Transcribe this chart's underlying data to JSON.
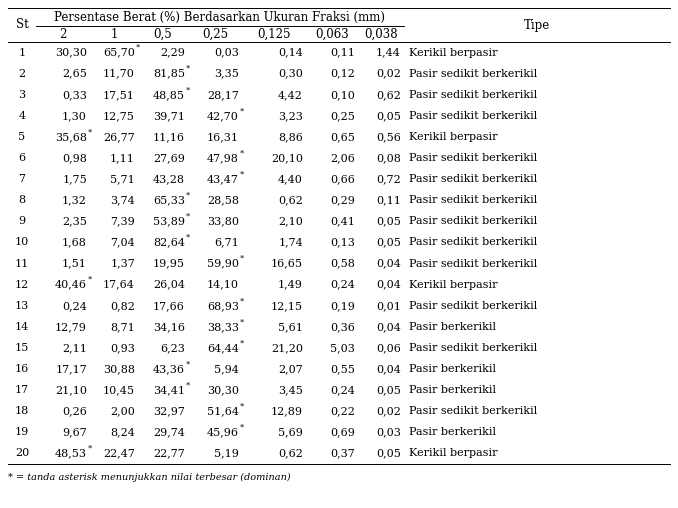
{
  "header_main": "Persentase Berat (%) Berdasarkan Ukuran Fraksi (mm)",
  "sub_headers": [
    "2",
    "1",
    "0,5",
    "0,25",
    "0,125",
    "0,063",
    "0,038"
  ],
  "rows": [
    [
      "1",
      "30,30",
      "65,70",
      "2,29",
      "0,03",
      "0,14",
      "0,11",
      "1,44",
      "Kerikil berpasir"
    ],
    [
      "2",
      "2,65",
      "11,70",
      "81,85",
      "3,35",
      "0,30",
      "0,12",
      "0,02",
      "Pasir sedikit berkerikil"
    ],
    [
      "3",
      "0,33",
      "17,51",
      "48,85",
      "28,17",
      "4,42",
      "0,10",
      "0,62",
      "Pasir sedikit berkerikil"
    ],
    [
      "4",
      "1,30",
      "12,75",
      "39,71",
      "42,70",
      "3,23",
      "0,25",
      "0,05",
      "Pasir sedikit berkerikil"
    ],
    [
      "5",
      "35,68",
      "26,77",
      "11,16",
      "16,31",
      "8,86",
      "0,65",
      "0,56",
      "Kerikil berpasir"
    ],
    [
      "6",
      "0,98",
      "1,11",
      "27,69",
      "47,98",
      "20,10",
      "2,06",
      "0,08",
      "Pasir sedikit berkerikil"
    ],
    [
      "7",
      "1,75",
      "5,71",
      "43,28",
      "43,47",
      "4,40",
      "0,66",
      "0,72",
      "Pasir sedikit berkerikil"
    ],
    [
      "8",
      "1,32",
      "3,74",
      "65,33",
      "28,58",
      "0,62",
      "0,29",
      "0,11",
      "Pasir sedikit berkerikil"
    ],
    [
      "9",
      "2,35",
      "7,39",
      "53,89",
      "33,80",
      "2,10",
      "0,41",
      "0,05",
      "Pasir sedikit berkerikil"
    ],
    [
      "10",
      "1,68",
      "7,04",
      "82,64",
      "6,71",
      "1,74",
      "0,13",
      "0,05",
      "Pasir sedikit berkerikil"
    ],
    [
      "11",
      "1,51",
      "1,37",
      "19,95",
      "59,90",
      "16,65",
      "0,58",
      "0,04",
      "Pasir sedikit berkerikil"
    ],
    [
      "12",
      "40,46",
      "17,64",
      "26,04",
      "14,10",
      "1,49",
      "0,24",
      "0,04",
      "Kerikil berpasir"
    ],
    [
      "13",
      "0,24",
      "0,82",
      "17,66",
      "68,93",
      "12,15",
      "0,19",
      "0,01",
      "Pasir sedikit berkerikil"
    ],
    [
      "14",
      "12,79",
      "8,71",
      "34,16",
      "38,33",
      "5,61",
      "0,36",
      "0,04",
      "Pasir berkerikil"
    ],
    [
      "15",
      "2,11",
      "0,93",
      "6,23",
      "64,44",
      "21,20",
      "5,03",
      "0,06",
      "Pasir sedikit berkerikil"
    ],
    [
      "16",
      "17,17",
      "30,88",
      "43,36",
      "5,94",
      "2,07",
      "0,55",
      "0,04",
      "Pasir berkerikil"
    ],
    [
      "17",
      "21,10",
      "10,45",
      "34,41",
      "30,30",
      "3,45",
      "0,24",
      "0,05",
      "Pasir berkerikil"
    ],
    [
      "18",
      "0,26",
      "2,00",
      "32,97",
      "51,64",
      "12,89",
      "0,22",
      "0,02",
      "Pasir sedikit berkerikil"
    ],
    [
      "19",
      "9,67",
      "8,24",
      "29,74",
      "45,96",
      "5,69",
      "0,69",
      "0,03",
      "Pasir berkerikil"
    ],
    [
      "20",
      "48,53",
      "22,47",
      "22,77",
      "5,19",
      "0,62",
      "0,37",
      "0,05",
      "Kerikil berpasir"
    ]
  ],
  "asterisk_cols": [
    [
      0,
      1,
      0,
      0,
      0,
      0,
      0,
      0
    ],
    [
      0,
      0,
      1,
      0,
      0,
      0,
      0,
      0
    ],
    [
      0,
      0,
      1,
      0,
      0,
      0,
      0,
      0
    ],
    [
      0,
      0,
      0,
      1,
      0,
      0,
      0,
      0
    ],
    [
      1,
      0,
      0,
      0,
      0,
      0,
      0,
      0
    ],
    [
      0,
      0,
      0,
      1,
      0,
      0,
      0,
      0
    ],
    [
      0,
      0,
      0,
      1,
      0,
      0,
      0,
      0
    ],
    [
      0,
      0,
      1,
      0,
      0,
      0,
      0,
      0
    ],
    [
      0,
      0,
      1,
      0,
      0,
      0,
      0,
      0
    ],
    [
      0,
      0,
      1,
      0,
      0,
      0,
      0,
      0
    ],
    [
      0,
      0,
      0,
      1,
      0,
      0,
      0,
      0
    ],
    [
      1,
      0,
      0,
      0,
      0,
      0,
      0,
      0
    ],
    [
      0,
      0,
      0,
      1,
      0,
      0,
      0,
      0
    ],
    [
      0,
      0,
      0,
      1,
      0,
      0,
      0,
      0
    ],
    [
      0,
      0,
      0,
      1,
      0,
      0,
      0,
      0
    ],
    [
      0,
      0,
      1,
      0,
      0,
      0,
      0,
      0
    ],
    [
      0,
      0,
      1,
      0,
      0,
      0,
      0,
      0
    ],
    [
      0,
      0,
      0,
      1,
      0,
      0,
      0,
      0
    ],
    [
      0,
      0,
      0,
      1,
      0,
      0,
      0,
      0
    ],
    [
      1,
      0,
      0,
      0,
      0,
      0,
      0,
      0
    ]
  ],
  "footnote": "* = tanda asterisk menunjukkan nilai terbesar (dominan)",
  "bg_color": "#ffffff",
  "font_size": 8.0,
  "header_font_size": 8.5
}
